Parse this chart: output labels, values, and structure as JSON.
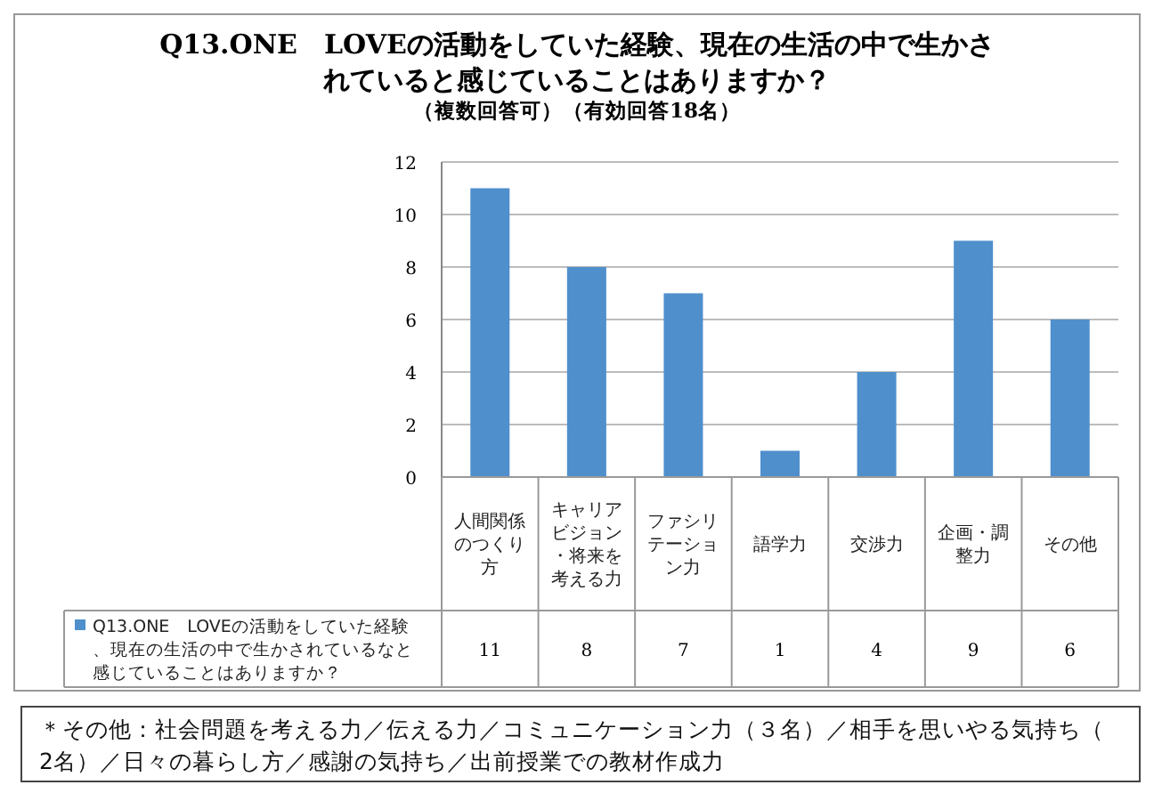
{
  "chart_data": {
    "type": "bar",
    "title": "Q13.ONE　LOVEの活動をしていた経験、現在の生活の中で生かされていると感じていることはありますか？",
    "subtitle": "（複数回答可）（有効回答18名）",
    "categories": [
      "人間関係のつくり方",
      "キャリアビジョン・将来を考える力",
      "ファシリテーション力",
      "語学力",
      "交渉力",
      "企画・調整力",
      "その他"
    ],
    "series": [
      {
        "name": "Q13.ONE　LOVEの活動をしていた経験、現在の生活の中で生かされているなと感じていることはありますか？",
        "color": "#4f8fcc",
        "values": [
          11,
          8,
          7,
          1,
          4,
          9,
          6
        ]
      }
    ],
    "ylim": [
      0,
      12
    ],
    "yticks": [
      0,
      2,
      4,
      6,
      8,
      10,
      12
    ],
    "grid": "y",
    "data_labels": true,
    "legend": "bottom left",
    "annotations": [
      "＊その他：社会問題を考える力／伝える力／コミュニケーション力（３名）／相手を思いやる気持ち（2名）／日々の暮らし方／感謝の気持ち／出前授業での教材作成力"
    ]
  }
}
